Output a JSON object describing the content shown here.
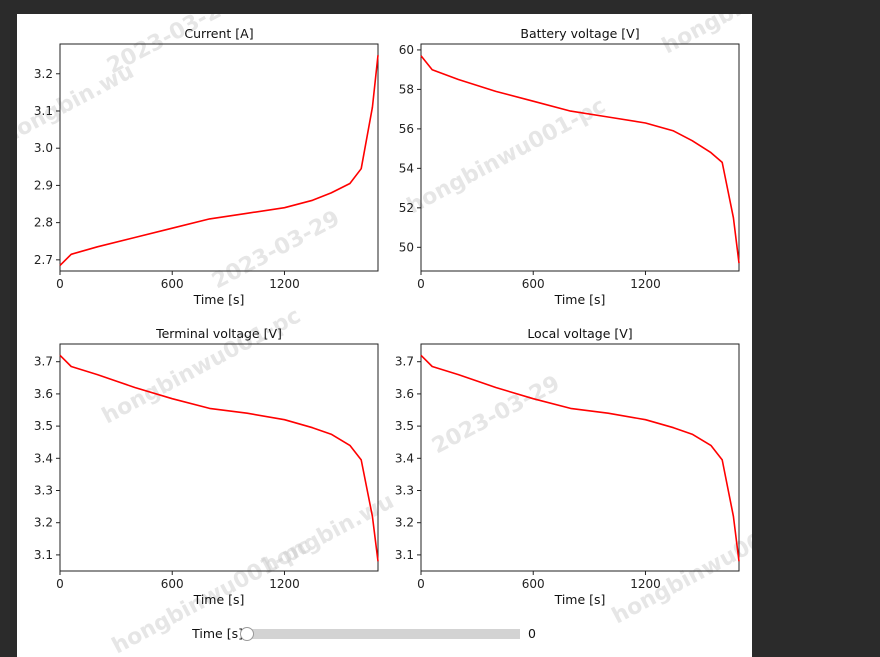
{
  "chart_data": [
    {
      "type": "line",
      "title": "Current [A]",
      "xlabel": "Time [s]",
      "ylabel": "",
      "xlim": [
        0,
        1700
      ],
      "ylim": [
        2.67,
        3.28
      ],
      "xticks": [
        0,
        600,
        1200
      ],
      "yticks": [
        2.7,
        2.8,
        2.9,
        3.0,
        3.1,
        3.2
      ],
      "ytick_labels": [
        "2.7",
        "2.8",
        "2.9",
        "3.0",
        "3.1",
        "3.2"
      ],
      "grid": false,
      "color": "#ff0000",
      "series": [
        {
          "x": [
            0,
            60,
            200,
            400,
            600,
            800,
            1000,
            1200,
            1350,
            1450,
            1550,
            1610,
            1670,
            1700
          ],
          "y": [
            2.685,
            2.715,
            2.735,
            2.76,
            2.785,
            2.81,
            2.825,
            2.84,
            2.86,
            2.88,
            2.905,
            2.945,
            3.11,
            3.25
          ]
        }
      ]
    },
    {
      "type": "line",
      "title": "Battery voltage [V]",
      "xlabel": "Time [s]",
      "ylabel": "",
      "xlim": [
        0,
        1700
      ],
      "ylim": [
        48.8,
        60.3
      ],
      "xticks": [
        0,
        600,
        1200
      ],
      "yticks": [
        50,
        52,
        54,
        56,
        58,
        60
      ],
      "ytick_labels": [
        "50",
        "52",
        "54",
        "56",
        "58",
        "60"
      ],
      "grid": false,
      "color": "#ff0000",
      "series": [
        {
          "x": [
            0,
            60,
            200,
            400,
            600,
            800,
            1000,
            1200,
            1350,
            1450,
            1550,
            1610,
            1670,
            1700
          ],
          "y": [
            59.7,
            59.0,
            58.5,
            57.9,
            57.4,
            56.9,
            56.6,
            56.3,
            55.9,
            55.4,
            54.8,
            54.3,
            51.5,
            49.2
          ]
        }
      ]
    },
    {
      "type": "line",
      "title": "Terminal voltage [V]",
      "xlabel": "Time [s]",
      "ylabel": "",
      "xlim": [
        0,
        1700
      ],
      "ylim": [
        3.05,
        3.755
      ],
      "xticks": [
        0,
        600,
        1200
      ],
      "yticks": [
        3.1,
        3.2,
        3.3,
        3.4,
        3.5,
        3.6,
        3.7
      ],
      "ytick_labels": [
        "3.1",
        "3.2",
        "3.3",
        "3.4",
        "3.5",
        "3.6",
        "3.7"
      ],
      "grid": false,
      "color": "#ff0000",
      "series": [
        {
          "x": [
            0,
            60,
            200,
            400,
            600,
            800,
            1000,
            1200,
            1350,
            1450,
            1550,
            1610,
            1670,
            1700
          ],
          "y": [
            3.72,
            3.685,
            3.66,
            3.62,
            3.585,
            3.555,
            3.54,
            3.52,
            3.495,
            3.475,
            3.44,
            3.395,
            3.22,
            3.08
          ]
        }
      ]
    },
    {
      "type": "line",
      "title": "Local voltage [V]",
      "xlabel": "Time [s]",
      "ylabel": "",
      "xlim": [
        0,
        1700
      ],
      "ylim": [
        3.05,
        3.755
      ],
      "xticks": [
        0,
        600,
        1200
      ],
      "yticks": [
        3.1,
        3.2,
        3.3,
        3.4,
        3.5,
        3.6,
        3.7
      ],
      "ytick_labels": [
        "3.1",
        "3.2",
        "3.3",
        "3.4",
        "3.5",
        "3.6",
        "3.7"
      ],
      "grid": false,
      "color": "#ff0000",
      "series": [
        {
          "x": [
            0,
            60,
            200,
            400,
            600,
            800,
            1000,
            1200,
            1350,
            1450,
            1550,
            1610,
            1670,
            1700
          ],
          "y": [
            3.72,
            3.685,
            3.66,
            3.62,
            3.585,
            3.555,
            3.54,
            3.52,
            3.495,
            3.475,
            3.44,
            3.395,
            3.22,
            3.08
          ]
        }
      ]
    }
  ],
  "slider": {
    "label": "Time [s]",
    "value": 0,
    "value_text": "0",
    "min": 0,
    "max": 1700
  },
  "watermark": {
    "texts": [
      "hongbin.wu",
      "2023-03-29",
      "hongbinwu001-pc",
      "hongbin"
    ]
  }
}
